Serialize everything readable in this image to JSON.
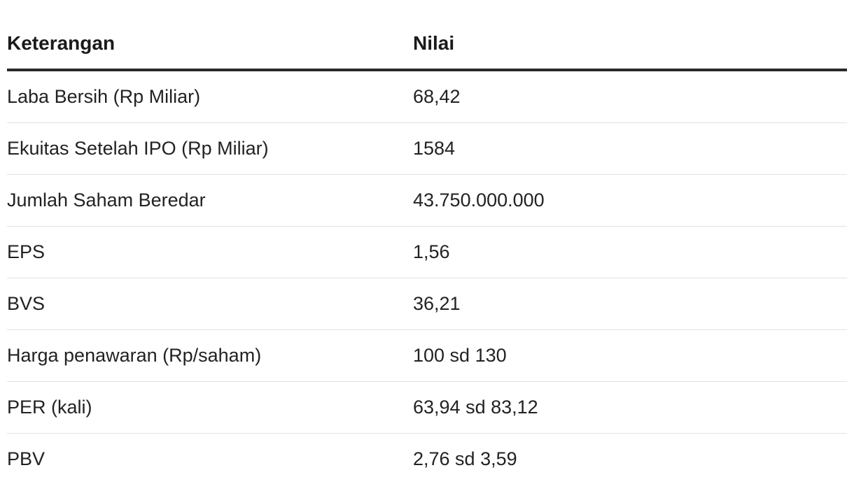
{
  "table": {
    "headers": [
      "Keterangan",
      "Nilai"
    ],
    "rows": [
      [
        "Laba Bersih (Rp Miliar)",
        "68,42"
      ],
      [
        "Ekuitas Setelah IPO (Rp Miliar)",
        "1584"
      ],
      [
        "Jumlah Saham Beredar",
        "43.750.000.000"
      ],
      [
        "EPS",
        "1,56"
      ],
      [
        "BVS",
        "36,21"
      ],
      [
        "Harga penawaran (Rp/saham)",
        "100 sd 130"
      ],
      [
        "PER (kali)",
        "63,94 sd 83,12"
      ],
      [
        "PBV",
        "2,76 sd 3,59"
      ]
    ]
  }
}
